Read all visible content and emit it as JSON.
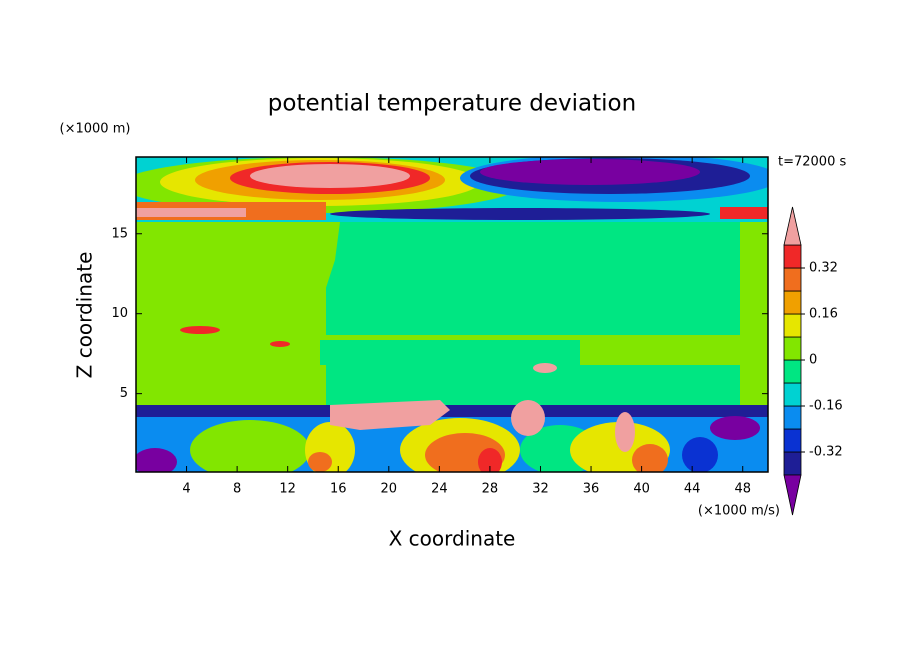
{
  "chart_data": {
    "type": "contour",
    "title": "potential temperature deviation",
    "x_label": "X coordinate",
    "y_label": "Z coordinate",
    "x_unit_label": "(×1000 m/s)",
    "y_unit_label": "(×1000 m)",
    "time_label": "t=72000 s",
    "xlim": [
      0,
      50
    ],
    "ylim": [
      0.1,
      19.8
    ],
    "xticks": [
      4,
      8,
      12,
      16,
      20,
      24,
      28,
      32,
      36,
      40,
      44,
      48
    ],
    "yticks": [
      5,
      10,
      15
    ],
    "colorbar": {
      "levels": [
        -0.4,
        -0.32,
        -0.24,
        -0.16,
        -0.08,
        0,
        0.08,
        0.16,
        0.24,
        0.32,
        0.4
      ],
      "colors": [
        "#7800a0",
        "#1e1e96",
        "#0a32d2",
        "#0a8cf0",
        "#00d2d2",
        "#00e682",
        "#82e600",
        "#e6e600",
        "#f0a000",
        "#f06e1e",
        "#f02828",
        "#f0a0a0"
      ],
      "ticks": [
        0.32,
        0.16,
        0,
        -0.16,
        -0.32
      ]
    }
  }
}
